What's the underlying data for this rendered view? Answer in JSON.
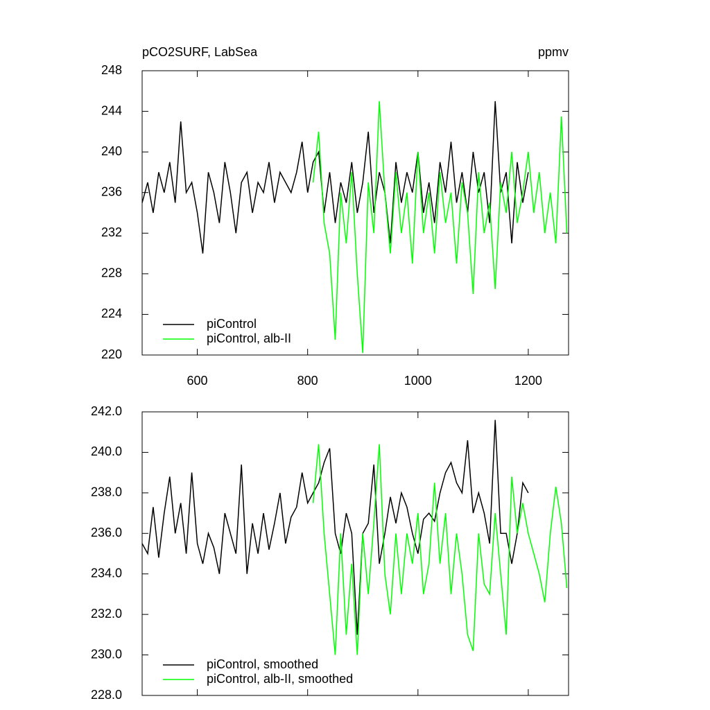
{
  "chart_data": [
    {
      "type": "line",
      "title": "pCO2SURF, LabSea",
      "units": "ppmv",
      "xlim": [
        500,
        1273
      ],
      "xticks": [
        600,
        800,
        1000,
        1200
      ],
      "ylim": [
        220,
        248
      ],
      "yticks": [
        220,
        224,
        228,
        232,
        236,
        240,
        244,
        248
      ],
      "series": [
        {
          "name": "piControl",
          "color": "#000000",
          "x": [
            500,
            510,
            520,
            530,
            540,
            550,
            560,
            570,
            580,
            590,
            600,
            610,
            620,
            630,
            640,
            650,
            660,
            670,
            680,
            690,
            700,
            710,
            720,
            730,
            740,
            750,
            760,
            770,
            780,
            790,
            800,
            810,
            820,
            830,
            840,
            850,
            860,
            870,
            880,
            890,
            900,
            910,
            920,
            930,
            940,
            950,
            960,
            970,
            980,
            990,
            1000,
            1010,
            1020,
            1030,
            1040,
            1050,
            1060,
            1070,
            1080,
            1090,
            1100,
            1110,
            1120,
            1130,
            1140,
            1150,
            1160,
            1170,
            1180,
            1190,
            1200
          ],
          "values": [
            235,
            237,
            234,
            238,
            236,
            239,
            235,
            243,
            236,
            237,
            234,
            230,
            238,
            236,
            233,
            239,
            236,
            232,
            237,
            238,
            234,
            237,
            236,
            239,
            235,
            238,
            237,
            236,
            238,
            241,
            236,
            239,
            240,
            234,
            238,
            233,
            237,
            235,
            239,
            234,
            237,
            242,
            234,
            238,
            236,
            231,
            239,
            235,
            238,
            236,
            240,
            234,
            237,
            233,
            239,
            236,
            241,
            235,
            238,
            234,
            240,
            236,
            238,
            233,
            245,
            236,
            238,
            231,
            239,
            235,
            238
          ]
        },
        {
          "name": "piControl, alb-II",
          "color": "#00ff00",
          "x": [
            810,
            820,
            830,
            840,
            850,
            860,
            870,
            880,
            890,
            900,
            910,
            920,
            930,
            940,
            950,
            960,
            970,
            980,
            990,
            1000,
            1010,
            1020,
            1030,
            1040,
            1050,
            1060,
            1070,
            1080,
            1090,
            1100,
            1110,
            1120,
            1130,
            1140,
            1150,
            1160,
            1170,
            1180,
            1190,
            1200,
            1210,
            1220,
            1230,
            1240,
            1250,
            1260,
            1270
          ],
          "values": [
            237,
            242,
            233,
            230,
            221.5,
            236,
            231,
            238,
            228,
            220.2,
            237,
            232,
            245,
            236,
            230,
            238,
            232,
            236,
            229,
            240,
            232,
            236,
            230,
            238,
            233,
            236,
            229,
            237,
            234,
            226,
            238,
            232,
            235,
            226.5,
            237,
            234,
            240,
            233,
            236,
            240,
            234,
            238,
            232,
            236,
            231,
            243.5,
            232
          ]
        }
      ]
    },
    {
      "type": "line",
      "xlim": [
        500,
        1273
      ],
      "xticks": [
        600,
        800,
        1000,
        1200
      ],
      "ylim": [
        228,
        242
      ],
      "yticks": [
        {
          "value": 228,
          "label": "228.0"
        },
        {
          "value": 230,
          "label": "230.0"
        },
        {
          "value": 232,
          "label": "232.0"
        },
        {
          "value": 234,
          "label": "234.0"
        },
        {
          "value": 236,
          "label": "236.0"
        },
        {
          "value": 238,
          "label": "238.0"
        },
        {
          "value": 240,
          "label": "240.0"
        },
        {
          "value": 242,
          "label": "242.0"
        }
      ],
      "series": [
        {
          "name": "piControl, smoothed",
          "color": "#000000",
          "x": [
            500,
            510,
            520,
            530,
            540,
            550,
            560,
            570,
            580,
            590,
            600,
            610,
            620,
            630,
            640,
            650,
            660,
            670,
            680,
            690,
            700,
            710,
            720,
            730,
            740,
            750,
            760,
            770,
            780,
            790,
            800,
            810,
            820,
            830,
            840,
            850,
            860,
            870,
            880,
            890,
            900,
            910,
            920,
            930,
            940,
            950,
            960,
            970,
            980,
            990,
            1000,
            1010,
            1020,
            1030,
            1040,
            1050,
            1060,
            1070,
            1080,
            1090,
            1100,
            1110,
            1120,
            1130,
            1140,
            1150,
            1160,
            1170,
            1180,
            1190,
            1200
          ],
          "values": [
            235.5,
            235,
            237.3,
            234.8,
            237,
            238.8,
            236,
            237.5,
            235,
            239,
            235.5,
            234.5,
            236,
            235.3,
            234,
            237,
            236,
            235,
            239.4,
            234,
            236.5,
            235,
            237,
            235.2,
            236.5,
            238,
            235.5,
            236.8,
            237.3,
            239,
            237.5,
            238,
            238.5,
            239.5,
            240.2,
            236,
            235,
            237,
            236,
            231,
            236,
            236.5,
            239.4,
            234.5,
            236,
            237.8,
            236.5,
            238,
            237.3,
            236,
            235,
            236.7,
            237,
            236.6,
            238,
            239,
            239.5,
            238.5,
            238,
            240.6,
            237,
            238,
            237,
            235.5,
            241.6,
            236,
            236,
            234.5,
            236,
            238.5,
            238
          ]
        },
        {
          "name": "piControl, alb-II, smoothed",
          "color": "#00ff00",
          "x": [
            810,
            820,
            830,
            840,
            850,
            860,
            870,
            880,
            890,
            900,
            910,
            920,
            930,
            940,
            950,
            960,
            970,
            980,
            990,
            1000,
            1010,
            1020,
            1030,
            1040,
            1050,
            1060,
            1070,
            1080,
            1090,
            1100,
            1110,
            1120,
            1130,
            1140,
            1150,
            1160,
            1170,
            1180,
            1190,
            1200,
            1210,
            1220,
            1230,
            1240,
            1250,
            1260,
            1270
          ],
          "values": [
            237.5,
            240.4,
            236,
            233,
            230,
            236,
            231,
            234.5,
            230,
            236,
            233,
            236.5,
            240.4,
            234,
            232,
            236,
            233,
            236,
            234.5,
            237,
            233,
            234.5,
            238.5,
            234.5,
            237,
            233,
            236,
            234,
            231,
            230.2,
            236,
            233.5,
            233,
            237,
            234,
            231,
            238.8,
            236,
            237.5,
            236,
            235,
            234,
            232.6,
            236,
            238.3,
            236.5,
            233.3
          ]
        }
      ]
    }
  ]
}
